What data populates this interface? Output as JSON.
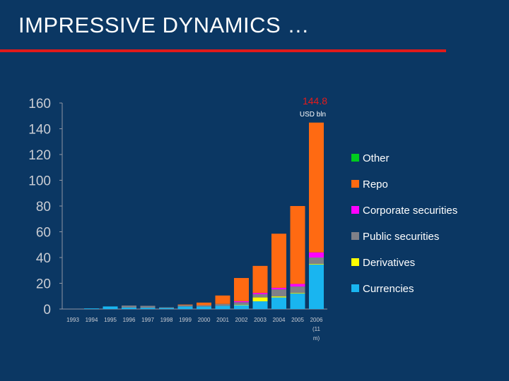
{
  "slide": {
    "title": "IMPRESSIVE DYNAMICS …"
  },
  "colors": {
    "background": "#0b3763",
    "title_rule": "#e01a1a",
    "callout": "#e41b1b"
  },
  "chart_data": {
    "type": "bar",
    "stacked": true,
    "categories": [
      "1993",
      "1994",
      "1995",
      "1996",
      "1997",
      "1998",
      "1999",
      "2000",
      "2001",
      "2002",
      "2003",
      "2004",
      "2005",
      "2006"
    ],
    "category_note": {
      "category": "2006",
      "text": [
        "(11",
        "m)"
      ]
    },
    "ylim": [
      0,
      160
    ],
    "yticks": [
      0,
      20,
      40,
      60,
      80,
      100,
      120,
      140,
      160
    ],
    "grid": false,
    "legend_position": "right",
    "annotation": {
      "category": "2006",
      "value_text": "144.8",
      "unit_text": "USD bln"
    },
    "series": [
      {
        "name": "Currencies",
        "color": "#19b5f0",
        "values": [
          0,
          0.5,
          2,
          1.2,
          1,
          0.8,
          2,
          2,
          2.5,
          3,
          6,
          9,
          12,
          34.5
        ]
      },
      {
        "name": "Derivatives",
        "color": "#ffff00",
        "values": [
          0,
          0,
          0,
          0,
          0,
          0,
          0,
          0,
          0,
          0.3,
          3,
          0.8,
          0.5,
          0.5
        ]
      },
      {
        "name": "Public securities",
        "color": "#7f8088",
        "values": [
          0,
          0,
          0,
          1.5,
          1.5,
          0.5,
          1,
          1,
          1.5,
          2,
          2.5,
          5.5,
          5,
          5
        ]
      },
      {
        "name": "Corporate securities",
        "color": "#ff00ff",
        "values": [
          0,
          0,
          0,
          0,
          0,
          0,
          0,
          0,
          0,
          0.8,
          1,
          1.2,
          2,
          4
        ]
      },
      {
        "name": "Repo",
        "color": "#ff6a12",
        "values": [
          0,
          0,
          0,
          0,
          0,
          0,
          0.5,
          2,
          6.5,
          18,
          21,
          42,
          60.5,
          100.8
        ]
      },
      {
        "name": "Other",
        "color": "#00cc1e",
        "values": [
          0,
          0,
          0,
          0,
          0,
          0,
          0,
          0,
          0,
          0,
          0,
          0,
          0,
          0
        ]
      }
    ]
  }
}
